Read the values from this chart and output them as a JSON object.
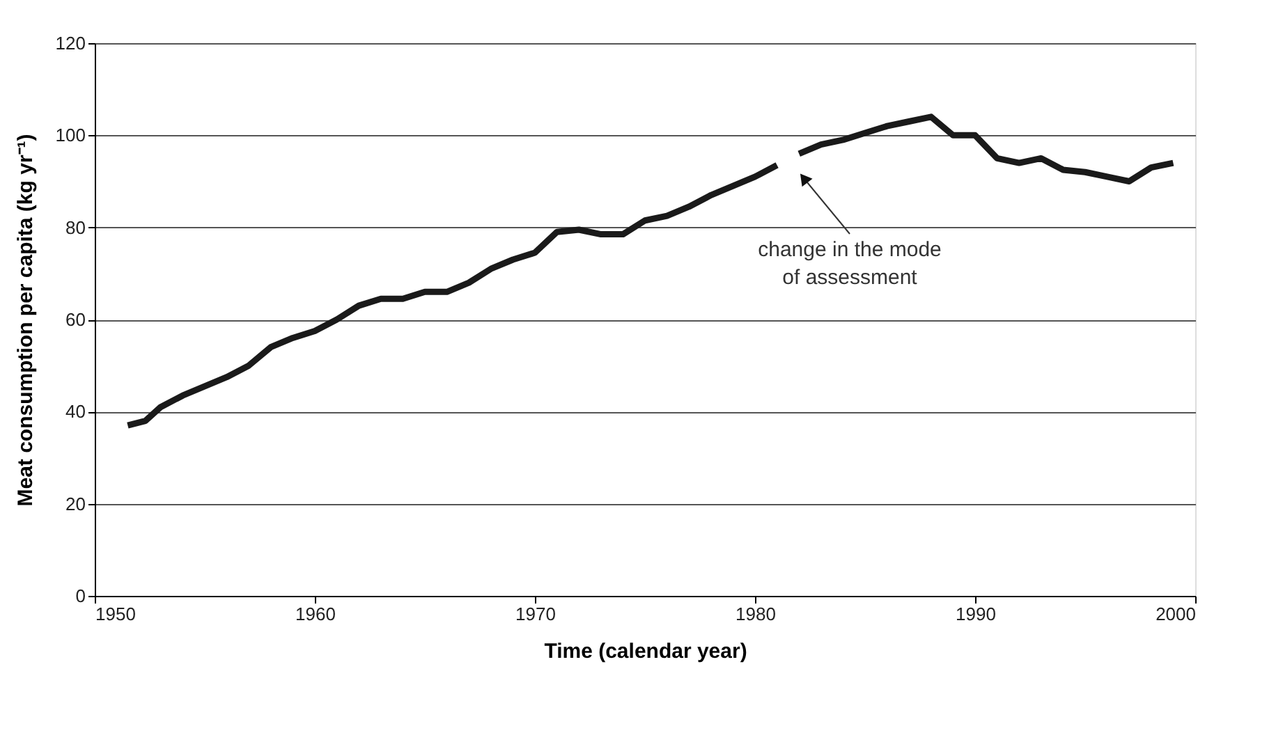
{
  "chart_data": {
    "type": "line",
    "xlabel": "Time (calendar year)",
    "ylabel": "Meat consumption per capita (kg yr⁻¹)",
    "x": [
      1951.5,
      1952.3,
      1953,
      1954,
      1955,
      1956,
      1957,
      1958,
      1959,
      1960,
      1961,
      1962,
      1963,
      1964,
      1965,
      1966,
      1967,
      1968,
      1969,
      1970,
      1971,
      1972,
      1973,
      1974,
      1975,
      1976,
      1977,
      1978,
      1979,
      1980,
      1981,
      1981.5,
      1982,
      1983,
      1984,
      1985,
      1986,
      1987,
      1988,
      1989,
      1990,
      1991,
      1992,
      1993,
      1994,
      1995,
      1996,
      1997,
      1998,
      1999
    ],
    "series": [
      {
        "color": "#1a1a1a",
        "values": [
          37,
          38,
          41,
          43.5,
          45.5,
          47.5,
          50,
          54,
          56,
          57.5,
          60,
          63,
          64.5,
          64.5,
          66,
          66,
          68,
          71,
          73,
          74.5,
          79,
          79.5,
          78.5,
          78.5,
          81.5,
          82.5,
          84.5,
          87,
          89,
          91,
          93.5,
          null,
          96,
          98,
          99,
          100.5,
          102,
          103,
          104,
          100,
          100,
          95,
          94,
          95,
          92.5,
          92,
          91,
          90,
          93,
          94
        ]
      }
    ],
    "xlim": [
      1950,
      2000
    ],
    "xticks": [
      1950,
      1960,
      1970,
      1980,
      1990,
      2000
    ],
    "ylim": [
      0,
      120
    ],
    "yticks": [
      0,
      20,
      40,
      60,
      80,
      100,
      120
    ],
    "grid": "y",
    "line_style": "solid",
    "annotations": [
      "change in the mode of assessment"
    ]
  }
}
